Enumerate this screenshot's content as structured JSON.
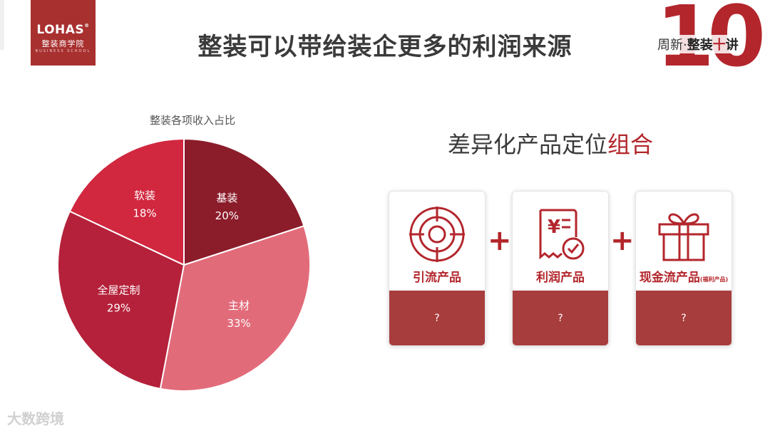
{
  "logo": {
    "brand": "LOHAS",
    "registered": "®",
    "subtitle": "整装商学院",
    "tagline": "BUSINESS SCHOOL"
  },
  "header": {
    "title": "整装可以带给装企更多的利润来源"
  },
  "badge": {
    "number": "10",
    "prefix": "周新·",
    "bold": "整装",
    "red": "十",
    "suffix": "讲"
  },
  "chart_data": {
    "type": "pie",
    "title": "整装各项收入占比",
    "slices": [
      {
        "label": "基装",
        "value": 20,
        "value_label": "20%",
        "color": "#8b1c2a",
        "label_color": "#ffffff"
      },
      {
        "label": "主材",
        "value": 33,
        "value_label": "33%",
        "color": "#e26b7a",
        "label_color": "#ffffff"
      },
      {
        "label": "全屋定制",
        "value": 29,
        "value_label": "29%",
        "color": "#b5213a",
        "label_color": "#ffffff"
      },
      {
        "label": "软装",
        "value": 18,
        "value_label": "18%",
        "color": "#d1273f",
        "label_color": "#ffffff"
      }
    ],
    "start": "top, clockwise"
  },
  "right": {
    "title_plain": "差异化产品定位",
    "title_red": "组合",
    "cards": [
      {
        "label": "引流产品",
        "label_small": "",
        "bottom": "?",
        "icon": "target-icon"
      },
      {
        "label": "利润产品",
        "label_small": "",
        "bottom": "?",
        "icon": "invoice-check-icon"
      },
      {
        "label": "现金流产品",
        "label_small": "(福利产品)",
        "bottom": "?",
        "icon": "gift-icon"
      }
    ],
    "plus": "+"
  },
  "watermark": {
    "text": "大数跨境"
  },
  "colors": {
    "accent": "#b3262c",
    "card_bottom": "#a83d3e"
  }
}
